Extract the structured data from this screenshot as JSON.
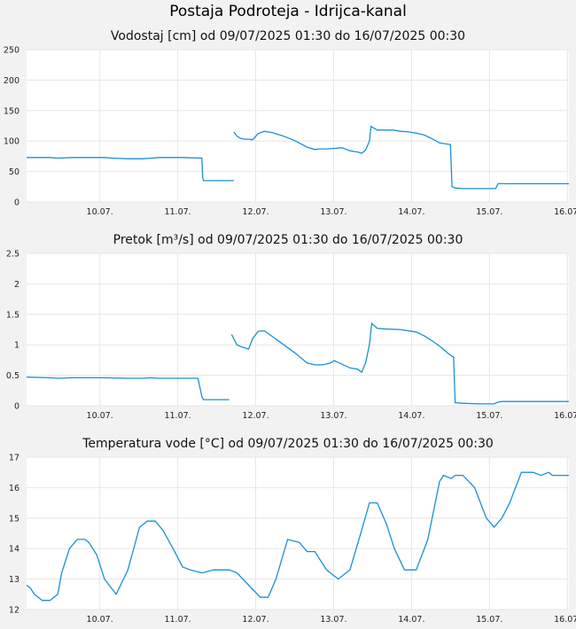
{
  "page": {
    "title": "Postaja Podroteja - Idrijca-kanal"
  },
  "colors": {
    "series": "#1a8fd6",
    "grid": "#e6e6e6",
    "plot_background": "#ffffff",
    "page_background": "#f2f2f2"
  },
  "chart_data": [
    {
      "type": "line",
      "title": "Vodostaj [cm] od 09/07/2025 01:30 do 16/07/2025 00:30",
      "xlabel": "",
      "ylabel": "",
      "xlim": [
        0,
        6.96
      ],
      "ylim": [
        0,
        250
      ],
      "yticks": [
        "0",
        "50",
        "100",
        "150",
        "200",
        "250"
      ],
      "ytick_values": [
        0,
        50,
        100,
        150,
        200,
        250
      ],
      "xticks": [
        "10.07.",
        "11.07.",
        "12.07.",
        "13.07.",
        "14.07.",
        "15.07.",
        "16.07."
      ],
      "xtick_days": [
        0.94,
        1.94,
        2.94,
        3.94,
        4.94,
        5.94,
        6.94
      ],
      "grid": true,
      "series": [
        {
          "x": [
            0,
            0.3,
            0.4,
            0.6,
            1.0,
            1.1,
            1.3,
            1.5,
            1.6,
            1.7,
            2.0,
            2.25,
            2.26,
            2.27,
            2.5,
            2.66
          ],
          "y": [
            73,
            73,
            72,
            73,
            73,
            72,
            71,
            71,
            72,
            73,
            73,
            72,
            40,
            35,
            35,
            35
          ]
        },
        {
          "x": [
            2.66,
            2.7,
            2.75,
            2.8,
            2.85,
            2.9,
            2.97,
            3.05,
            3.15,
            3.3,
            3.45,
            3.6,
            3.7,
            3.75,
            3.85,
            3.95,
            4.05,
            4.15,
            4.25,
            4.3,
            4.35,
            4.4,
            4.42,
            4.5,
            4.6,
            4.7,
            4.8,
            4.9,
            5.0,
            5.1,
            5.2,
            5.3,
            5.4,
            5.44,
            5.46,
            5.5,
            5.6,
            5.8,
            6.0,
            6.02,
            6.05,
            6.1,
            6.4,
            6.7,
            6.96
          ],
          "y": [
            115,
            108,
            104,
            103,
            103,
            102,
            112,
            116,
            114,
            108,
            100,
            90,
            86,
            87,
            87,
            88,
            89,
            84,
            82,
            80,
            85,
            100,
            124,
            118,
            118,
            118,
            116,
            115,
            113,
            110,
            104,
            97,
            95,
            94,
            25,
            23,
            22,
            22,
            22,
            22,
            30,
            30,
            30,
            30,
            30
          ]
        }
      ]
    },
    {
      "type": "line",
      "title": "Pretok [m³/s] od 09/07/2025 01:30 do 16/07/2025 00:30",
      "xlabel": "",
      "ylabel": "",
      "xlim": [
        0,
        6.96
      ],
      "ylim": [
        0,
        2.5
      ],
      "yticks": [
        "0",
        "0.5",
        "1",
        "1.5",
        "2",
        "2.5"
      ],
      "ytick_values": [
        0,
        0.5,
        1,
        1.5,
        2,
        2.5
      ],
      "xticks": [
        "10.07.",
        "11.07.",
        "12.07.",
        "13.07.",
        "14.07.",
        "15.07.",
        "16.07."
      ],
      "xtick_days": [
        0.94,
        1.94,
        2.94,
        3.94,
        4.94,
        5.94,
        6.94
      ],
      "grid": true,
      "series": [
        {
          "x": [
            0,
            0.3,
            0.4,
            0.6,
            1.0,
            1.3,
            1.5,
            1.6,
            1.7,
            2.0,
            2.2,
            2.25,
            2.27,
            2.4,
            2.5,
            2.6
          ],
          "y": [
            0.47,
            0.46,
            0.45,
            0.46,
            0.46,
            0.45,
            0.45,
            0.46,
            0.45,
            0.45,
            0.45,
            0.15,
            0.1,
            0.1,
            0.1,
            0.1
          ]
        },
        {
          "x": [
            2.63,
            2.7,
            2.75,
            2.85,
            2.9,
            2.97,
            3.05,
            3.15,
            3.3,
            3.45,
            3.6,
            3.7,
            3.8,
            3.9,
            3.95,
            4.05,
            4.15,
            4.25,
            4.3,
            4.35,
            4.4,
            4.43,
            4.5,
            4.6,
            4.8,
            5.0,
            5.1,
            5.2,
            5.3,
            5.4,
            5.45,
            5.48,
            5.5,
            5.6,
            5.8,
            6.0,
            6.05,
            6.1,
            6.4,
            6.7,
            6.96
          ],
          "y": [
            1.17,
            1.0,
            0.97,
            0.93,
            1.1,
            1.22,
            1.23,
            1.14,
            1.0,
            0.86,
            0.7,
            0.67,
            0.67,
            0.7,
            0.74,
            0.68,
            0.62,
            0.6,
            0.55,
            0.7,
            1.0,
            1.35,
            1.27,
            1.26,
            1.25,
            1.21,
            1.15,
            1.07,
            0.98,
            0.87,
            0.82,
            0.8,
            0.05,
            0.04,
            0.03,
            0.03,
            0.06,
            0.07,
            0.07,
            0.07,
            0.07
          ]
        }
      ]
    },
    {
      "type": "line",
      "title": "Temperatura vode [°C] od 09/07/2025 01:30 do 16/07/2025 00:30",
      "xlabel": "",
      "ylabel": "",
      "xlim": [
        0,
        6.96
      ],
      "ylim": [
        12,
        17
      ],
      "yticks": [
        "12",
        "13",
        "14",
        "15",
        "16",
        "17"
      ],
      "ytick_values": [
        12,
        13,
        14,
        15,
        16,
        17
      ],
      "xticks": [
        "10.07.",
        "11.07.",
        "12.07.",
        "13.07.",
        "14.07.",
        "15.07.",
        "16.07."
      ],
      "xtick_days": [
        0.94,
        1.94,
        2.94,
        3.94,
        4.94,
        5.94,
        6.94
      ],
      "grid": true,
      "series": [
        {
          "x": [
            0,
            0.05,
            0.1,
            0.2,
            0.3,
            0.4,
            0.45,
            0.55,
            0.65,
            0.75,
            0.8,
            0.9,
            1.0,
            1.15,
            1.3,
            1.45,
            1.55,
            1.65,
            1.75,
            1.9,
            2.0,
            2.1,
            2.25,
            2.4,
            2.6,
            2.7,
            2.85,
            3.0,
            3.1,
            3.2,
            3.35,
            3.5,
            3.6,
            3.7,
            3.85,
            4.0,
            4.15,
            4.3,
            4.4,
            4.5,
            4.62,
            4.72,
            4.85,
            5.0,
            5.15,
            5.3,
            5.35,
            5.45,
            5.5,
            5.6,
            5.75,
            5.9,
            6.0,
            6.1,
            6.2,
            6.35,
            6.5,
            6.6,
            6.7,
            6.75,
            6.8,
            6.85,
            6.9,
            6.96
          ],
          "y": [
            12.8,
            12.7,
            12.5,
            12.3,
            12.3,
            12.5,
            13.2,
            14.0,
            14.3,
            14.3,
            14.2,
            13.8,
            13.0,
            12.5,
            13.3,
            14.7,
            14.9,
            14.9,
            14.6,
            13.9,
            13.4,
            13.3,
            13.2,
            13.3,
            13.3,
            13.2,
            12.8,
            12.4,
            12.4,
            13.0,
            14.3,
            14.2,
            13.9,
            13.9,
            13.3,
            13.0,
            13.3,
            14.6,
            15.5,
            15.5,
            14.8,
            14.0,
            13.3,
            13.3,
            14.3,
            16.2,
            16.4,
            16.3,
            16.4,
            16.4,
            16.0,
            15.0,
            14.7,
            15.0,
            15.5,
            16.5,
            16.5,
            16.4,
            16.5,
            16.4,
            16.4,
            16.4,
            16.4,
            16.4
          ]
        }
      ]
    }
  ]
}
